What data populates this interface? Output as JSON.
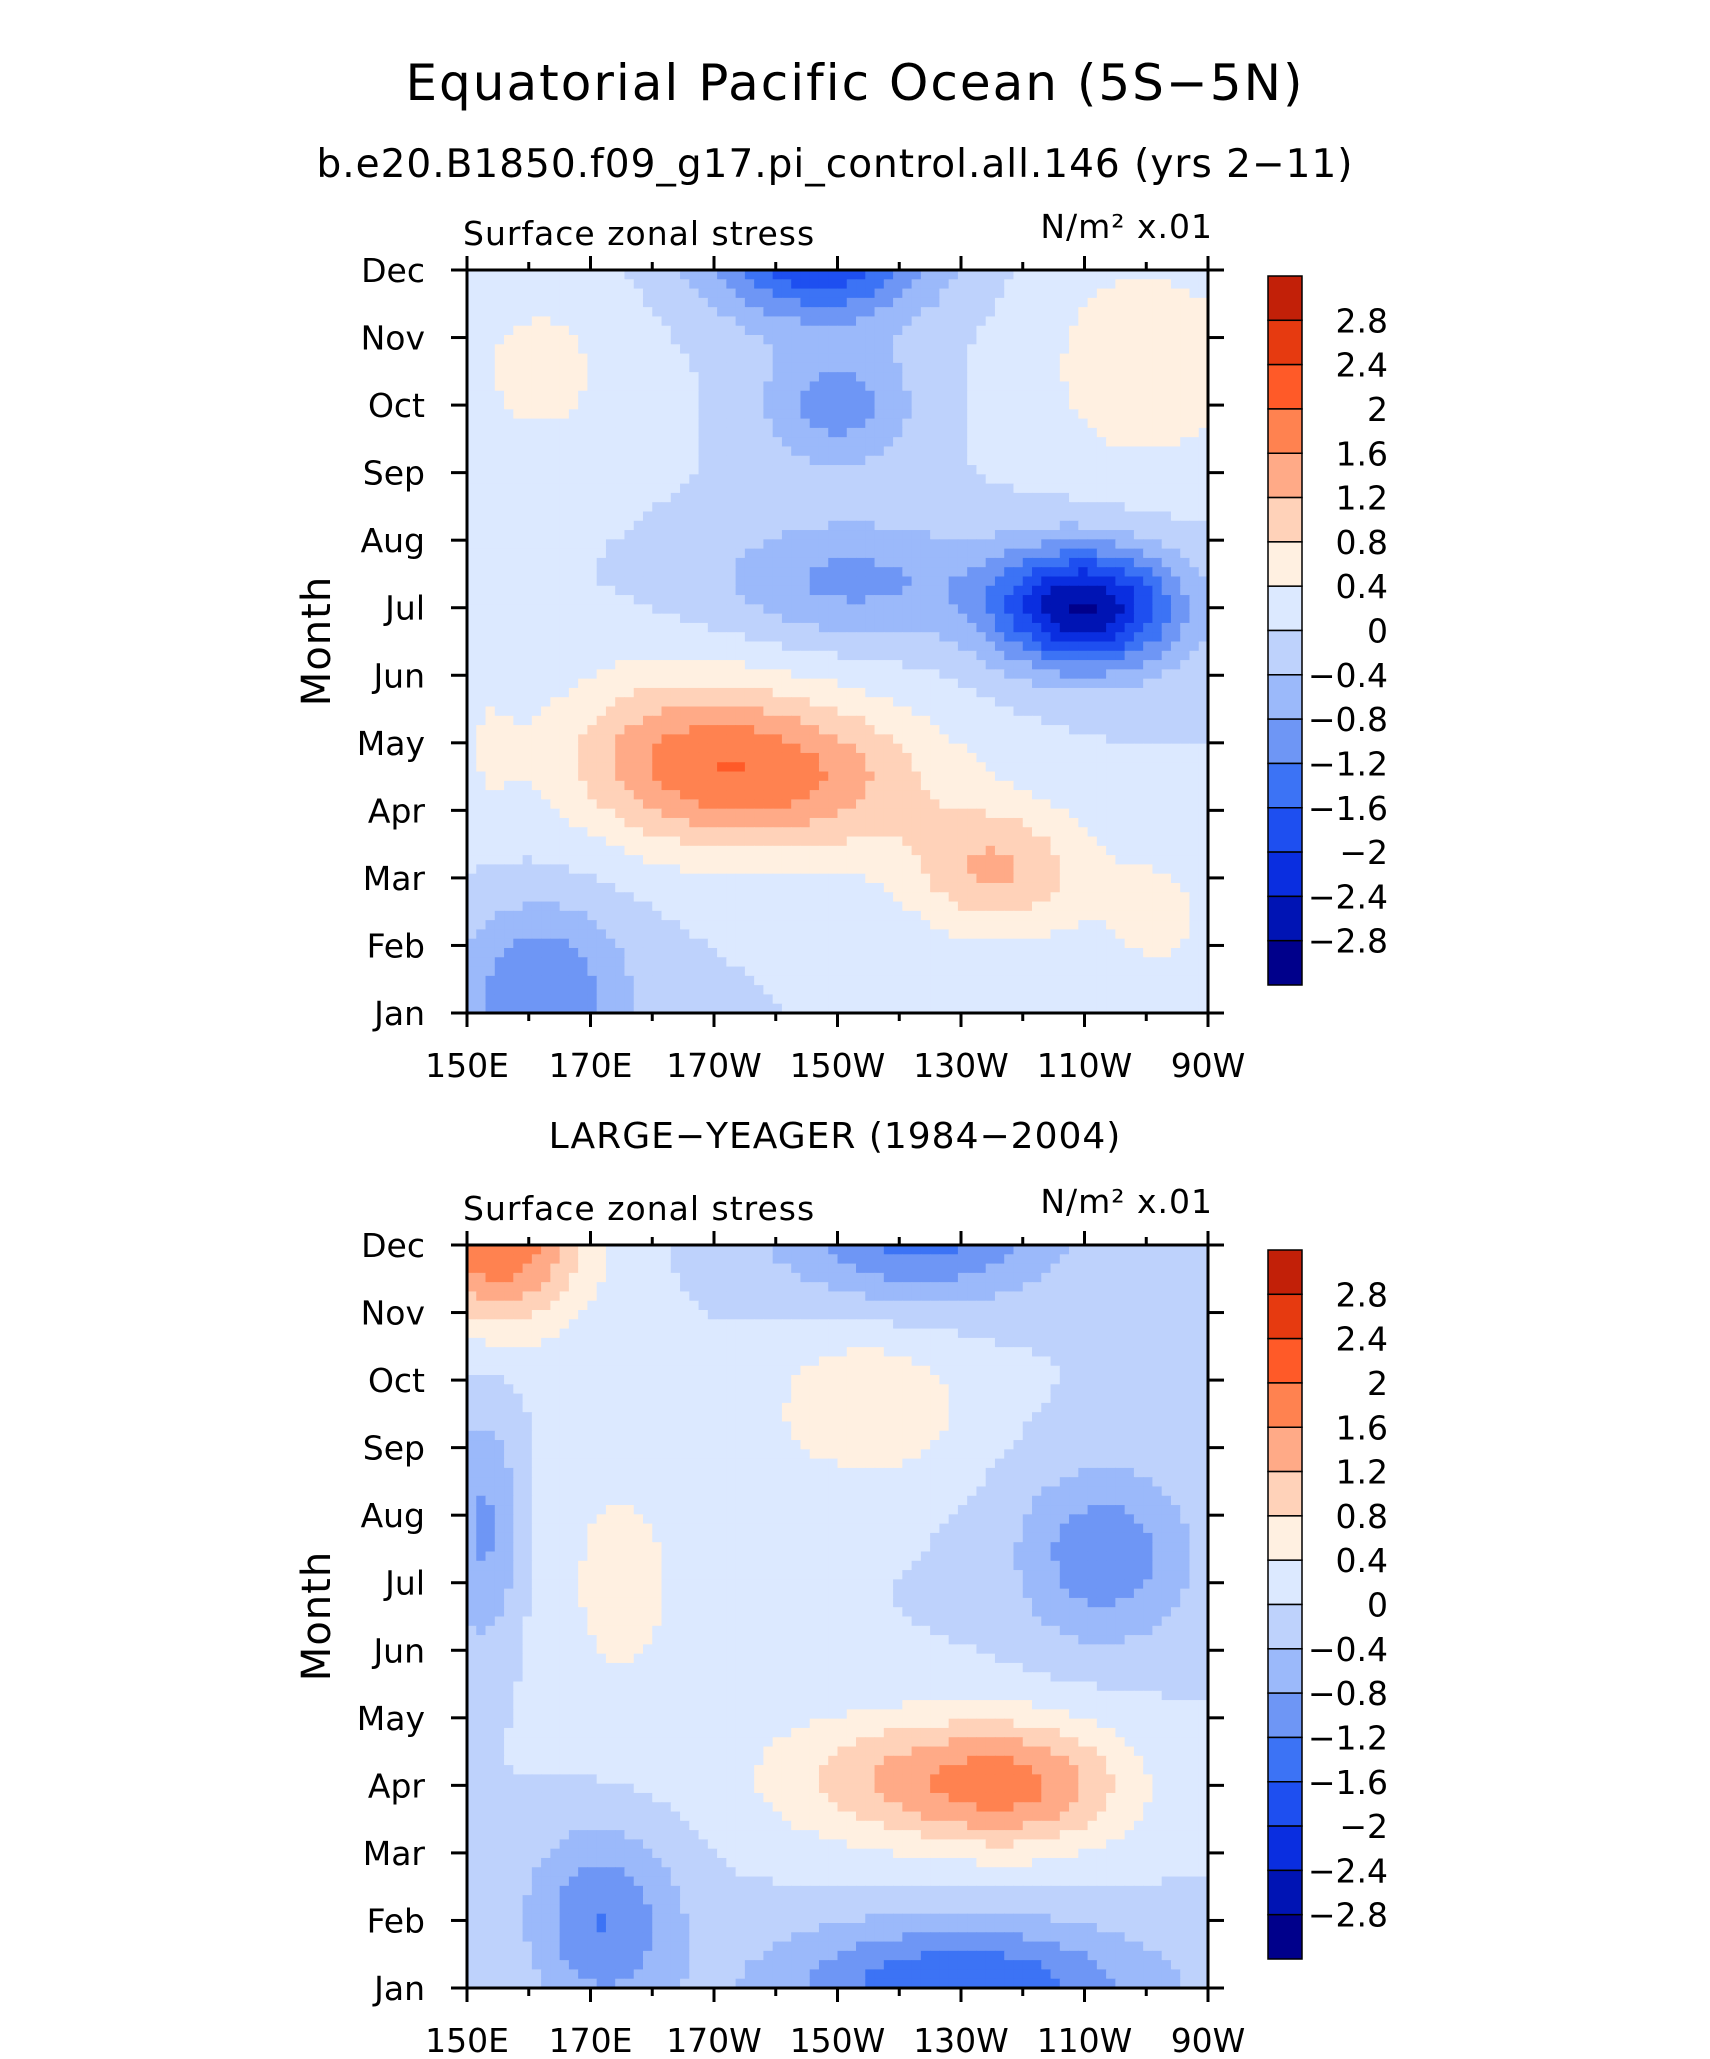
{
  "title": "Equatorial Pacific Ocean (5S−5N)",
  "subtitle": "b.e20.B1850.f09_g17.pi_control.all.146 (yrs 2−11)",
  "colors": {
    "levels": [
      "#00008b",
      "#0014b4",
      "#0a2ee0",
      "#1e4ff0",
      "#3c73f5",
      "#6e96f5",
      "#9bb9fa",
      "#bed2fc",
      "#dce9ff",
      "#fff0e1",
      "#ffd2b9",
      "#ffaa87",
      "#ff8250",
      "#ff5a28",
      "#e63a10",
      "#c22008",
      "#8e0000"
    ]
  },
  "chart_data": [
    {
      "type": "heatmap",
      "name": "model",
      "panel_title": "",
      "left_label": "Surface zonal stress",
      "right_label": "N/m² x.01",
      "ylabel": "Month",
      "xlabel": "",
      "x_ticks": [
        "150E",
        "170E",
        "170W",
        "150W",
        "130W",
        "110W",
        "90W"
      ],
      "x_tick_values": [
        150,
        170,
        190,
        210,
        230,
        250,
        270
      ],
      "xlim": [
        150,
        270
      ],
      "y_ticks": [
        "Jan",
        "Feb",
        "Mar",
        "Apr",
        "May",
        "Jun",
        "Jul",
        "Aug",
        "Sep",
        "Oct",
        "Nov",
        "Dec"
      ],
      "ylim": [
        1,
        12
      ],
      "colorbar_labels": [
        "2.8",
        "2.4",
        "2",
        "1.6",
        "1.2",
        "0.8",
        "0.4",
        "0",
        "−0.4",
        "−0.8",
        "−1.2",
        "−1.6",
        "−2",
        "−2.4",
        "−2.8"
      ],
      "levels": [
        -2.8,
        -2.4,
        -2.0,
        -1.6,
        -1.2,
        -0.8,
        -0.4,
        0,
        0.4,
        0.8,
        1.2,
        1.6,
        2.0,
        2.4,
        2.8
      ],
      "features": [
        {
          "lon": 200,
          "month": 4.5,
          "value": 1.6,
          "dlon": 26,
          "dmonth": 1.2
        },
        {
          "lon": 236,
          "month": 3.1,
          "value": 1.2,
          "dlon": 15,
          "dmonth": 1.0
        },
        {
          "lon": 182,
          "month": 5.0,
          "value": 0.8,
          "dlon": 20,
          "dmonth": 1.3
        },
        {
          "lon": 250,
          "month": 7.0,
          "value": -2.8,
          "dlon": 15,
          "dmonth": 0.9
        },
        {
          "lon": 212,
          "month": 7.4,
          "value": -0.9,
          "dlon": 22,
          "dmonth": 0.9
        },
        {
          "lon": 207,
          "month": 12.3,
          "value": -2.2,
          "dlon": 18,
          "dmonth": 1.0
        },
        {
          "lon": 210,
          "month": 10.0,
          "value": -1.0,
          "dlon": 12,
          "dmonth": 0.9
        },
        {
          "lon": 162,
          "month": 1.3,
          "value": -1.2,
          "dlon": 14,
          "dmonth": 1.3
        },
        {
          "lon": 260,
          "month": 10.6,
          "value": 0.7,
          "dlon": 18,
          "dmonth": 1.7
        },
        {
          "lon": 162,
          "month": 10.5,
          "value": 0.5,
          "dlon": 16,
          "dmonth": 1.6
        },
        {
          "lon": 153,
          "month": 5.0,
          "value": 0.3,
          "dlon": 6,
          "dmonth": 1.6
        },
        {
          "lon": 262,
          "month": 2.4,
          "value": 0.5,
          "dlon": 10,
          "dmonth": 1.1
        }
      ]
    },
    {
      "type": "heatmap",
      "name": "observations",
      "panel_title": "LARGE−YEAGER (1984−2004)",
      "left_label": "Surface zonal stress",
      "right_label": "N/m² x.01",
      "ylabel": "Month",
      "xlabel": "",
      "x_ticks": [
        "150E",
        "170E",
        "170W",
        "150W",
        "130W",
        "110W",
        "90W"
      ],
      "x_tick_values": [
        150,
        170,
        190,
        210,
        230,
        250,
        270
      ],
      "xlim": [
        150,
        270
      ],
      "y_ticks": [
        "Jan",
        "Feb",
        "Mar",
        "Apr",
        "May",
        "Jun",
        "Jul",
        "Aug",
        "Sep",
        "Oct",
        "Nov",
        "Dec"
      ],
      "ylim": [
        1,
        12
      ],
      "colorbar_labels": [
        "2.8",
        "2.4",
        "2",
        "1.6",
        "1.2",
        "0.8",
        "0.4",
        "0",
        "−0.4",
        "−0.8",
        "−1.2",
        "−1.6",
        "−2",
        "−2.4",
        "−2.8"
      ],
      "levels": [
        -2.8,
        -2.4,
        -2.0,
        -1.6,
        -1.2,
        -0.8,
        -0.4,
        0,
        0.4,
        0.8,
        1.2,
        1.6,
        2.0,
        2.4,
        2.8
      ],
      "features": [
        {
          "lon": 155,
          "month": 12.1,
          "value": 2.0,
          "dlon": 14,
          "dmonth": 1.3
        },
        {
          "lon": 240,
          "month": 4.0,
          "value": 1.4,
          "dlon": 18,
          "dmonth": 1.0
        },
        {
          "lon": 218,
          "month": 4.1,
          "value": 1.0,
          "dlon": 22,
          "dmonth": 1.0
        },
        {
          "lon": 215,
          "month": 9.6,
          "value": 0.8,
          "dlon": 16,
          "dmonth": 1.1
        },
        {
          "lon": 230,
          "month": 1.0,
          "value": -1.6,
          "dlon": 30,
          "dmonth": 1.0
        },
        {
          "lon": 172,
          "month": 2.0,
          "value": -1.2,
          "dlon": 12,
          "dmonth": 1.4
        },
        {
          "lon": 223,
          "month": 12.2,
          "value": -1.4,
          "dlon": 22,
          "dmonth": 1.0
        },
        {
          "lon": 253,
          "month": 7.4,
          "value": -1.1,
          "dlon": 14,
          "dmonth": 1.3
        },
        {
          "lon": 153,
          "month": 7.8,
          "value": -0.9,
          "dlon": 6,
          "dmonth": 1.8
        },
        {
          "lon": 175,
          "month": 7.0,
          "value": 0.5,
          "dlon": 14,
          "dmonth": 2.5
        }
      ]
    }
  ]
}
